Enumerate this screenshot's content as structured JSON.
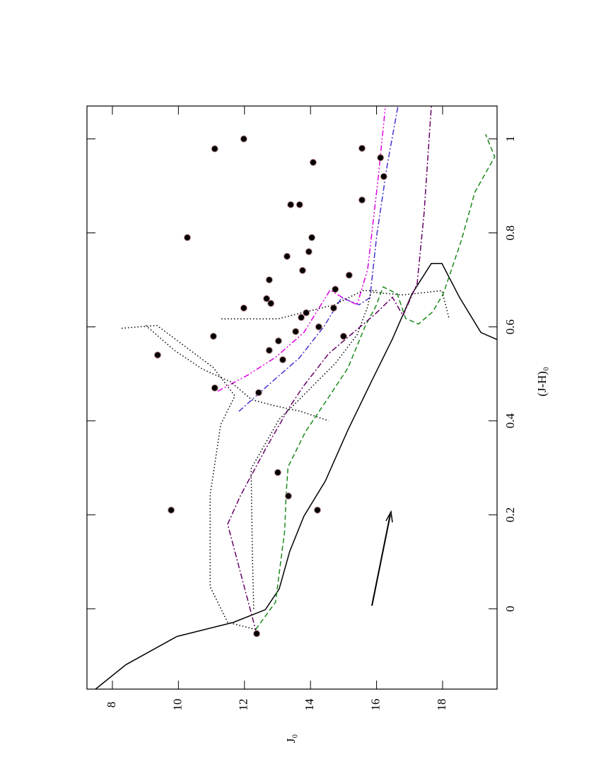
{
  "chart_data": {
    "type": "scatter",
    "xlabel": "J₀",
    "ylabel": "(J-H)₀",
    "xlim": [
      7.23,
      19.65
    ],
    "ylim": [
      -0.171,
      1.07
    ],
    "xticks": [
      8,
      10,
      12,
      14,
      16,
      18
    ],
    "yticks": [
      0,
      0.2,
      0.4,
      0.6,
      0.8,
      1
    ],
    "points": {
      "color": "#000000",
      "x": [
        11.1,
        11.98,
        10.27,
        9.37,
        9.78,
        12.37,
        11.06,
        11.1,
        11.98,
        12.75,
        12.67,
        12.8,
        12.75,
        12.43,
        13.03,
        13.16,
        13.29,
        13.4,
        13.67,
        13.76,
        13.95,
        14.04,
        14.08,
        13.55,
        13.72,
        13.87,
        14.25,
        14.7,
        14.75,
        15.17,
        15.0,
        13.01,
        13.33,
        14.21,
        15.56,
        16.12,
        16.22,
        15.56
      ],
      "y": [
        0.979,
        1.0,
        0.79,
        0.54,
        0.21,
        -0.053,
        0.58,
        0.47,
        0.64,
        0.7,
        0.66,
        0.65,
        0.55,
        0.46,
        0.57,
        0.53,
        0.75,
        0.86,
        0.86,
        0.72,
        0.76,
        0.79,
        0.95,
        0.59,
        0.62,
        0.63,
        0.6,
        0.64,
        0.68,
        0.71,
        0.58,
        0.29,
        0.24,
        0.21,
        0.98,
        0.96,
        0.92,
        0.87
      ]
    },
    "curves": [
      {
        "color": "#000000",
        "dash": "solid",
        "x": [
          7.49,
          8.41,
          9.95,
          11.66,
          12.63,
          13.05,
          13.37,
          13.8,
          14.45,
          15.13,
          15.84,
          16.48,
          17.08,
          17.66,
          17.98,
          18.51,
          19.16,
          19.65
        ],
        "y": [
          -0.171,
          -0.119,
          -0.059,
          -0.029,
          -0.002,
          0.042,
          0.122,
          0.197,
          0.272,
          0.38,
          0.483,
          0.574,
          0.671,
          0.735,
          0.735,
          0.663,
          0.588,
          0.573
        ]
      },
      {
        "color": "#1a8a1a",
        "dash": "dashed",
        "x": [
          12.34,
          12.94,
          13.22,
          13.26,
          13.32,
          13.85,
          14.49,
          15.13,
          15.66,
          15.98,
          16.2,
          16.63,
          16.88,
          17.27,
          17.7,
          18.02,
          18.56,
          18.98,
          19.58,
          19.3
        ],
        "y": [
          -0.044,
          0.014,
          0.167,
          0.242,
          0.302,
          0.377,
          0.444,
          0.512,
          0.602,
          0.644,
          0.685,
          0.67,
          0.618,
          0.606,
          0.632,
          0.67,
          0.782,
          0.887,
          0.962,
          1.01
        ]
      },
      {
        "color": "#660066",
        "dash": "dashdot",
        "x": [
          12.37,
          11.49,
          11.88,
          12.63,
          13.37,
          13.8,
          14.55,
          15.3,
          15.94,
          16.48,
          16.8,
          17.23,
          17.44,
          17.66
        ],
        "y": [
          -0.053,
          0.18,
          0.241,
          0.339,
          0.43,
          0.475,
          0.543,
          0.588,
          0.626,
          0.663,
          0.624,
          0.692,
          0.842,
          1.07
        ]
      },
      {
        "color": "#4433cc",
        "dash": "dashdot",
        "x": [
          11.83,
          12.8,
          13.65,
          14.4,
          14.94,
          15.47,
          15.8,
          16.01,
          16.33,
          16.65
        ],
        "y": [
          0.42,
          0.481,
          0.533,
          0.6,
          0.662,
          0.647,
          0.662,
          0.797,
          0.947,
          1.07
        ]
      },
      {
        "color": "#dd00dd",
        "dash": "dashdotdot",
        "x": [
          11.19,
          12.09,
          12.94,
          13.8,
          14.59,
          14.98,
          15.41,
          15.73,
          16.05,
          16.27
        ],
        "y": [
          0.463,
          0.497,
          0.535,
          0.588,
          0.678,
          0.662,
          0.647,
          0.722,
          0.917,
          1.07
        ]
      },
      {
        "color": "#000000",
        "dash": "dotted",
        "x": [
          12.34,
          11.49,
          10.96,
          10.96,
          11.28,
          11.71,
          11.06,
          10.21,
          9.35,
          8.28
        ],
        "y": [
          -0.044,
          -0.029,
          0.047,
          0.242,
          0.392,
          0.453,
          0.513,
          0.558,
          0.603,
          0.597
        ]
      },
      {
        "color": "#000000",
        "dash": "dotted",
        "x": [
          12.28,
          12.24,
          12.2,
          13.05,
          13.91,
          14.76,
          15.41,
          15.73,
          15.83,
          16.8,
          17.98,
          18.19
        ],
        "y": [
          0.0,
          0.117,
          0.298,
          0.403,
          0.463,
          0.523,
          0.583,
          0.643,
          0.674,
          0.668,
          0.677,
          0.62
        ]
      },
      {
        "color": "#000000",
        "dash": "dotted",
        "x": [
          9.01,
          9.88,
          10.73,
          11.58,
          12.22,
          12.86,
          13.71,
          14.55
        ],
        "y": [
          0.603,
          0.55,
          0.51,
          0.483,
          0.445,
          0.433,
          0.42,
          0.4
        ]
      },
      {
        "color": "#000000",
        "dash": "dotted",
        "x": [
          11.3,
          13.01,
          14.72,
          15.58,
          16.01
        ],
        "y": [
          0.617,
          0.617,
          0.647,
          0.677,
          0.677
        ]
      }
    ]
  }
}
